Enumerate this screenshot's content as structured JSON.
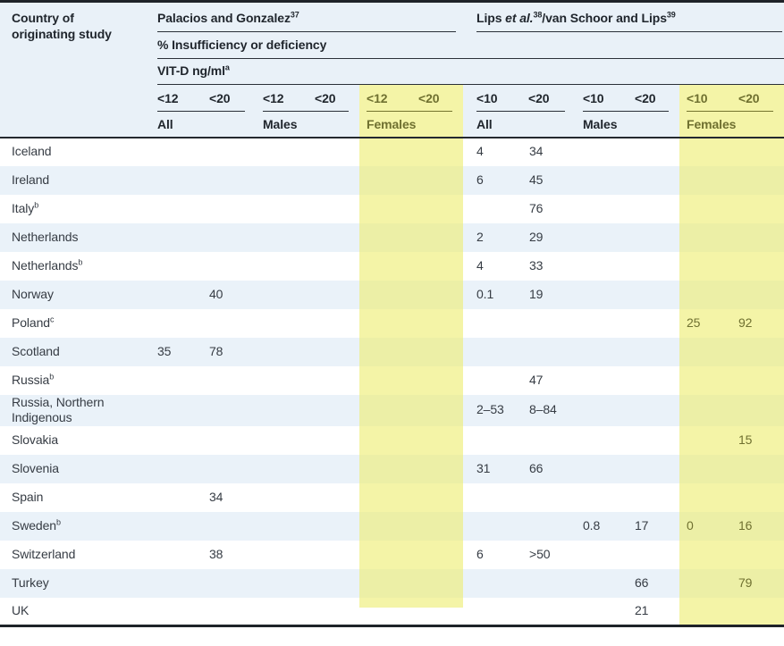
{
  "chart_data": {
    "type": "table",
    "title": "Vitamin D insufficiency or deficiency by country of originating study",
    "header": {
      "country_label": "Country of originating study",
      "study1": {
        "name": "Palacios and Gonzalez",
        "ref": "37"
      },
      "study2": {
        "pre": "Lips ",
        "italic": "et al.",
        "ref1": "38",
        "mid": "/van Schoor and Lips",
        "ref2": "39"
      },
      "measure_label": "% Insufficiency or deficiency",
      "unit_label": "VIT-D ng/ml",
      "unit_sup": "a",
      "subgroups": [
        {
          "t1": "<12",
          "t2": "<20",
          "label": "All",
          "highlight": false
        },
        {
          "t1": "<12",
          "t2": "<20",
          "label": "Males",
          "highlight": false
        },
        {
          "t1": "<12",
          "t2": "<20",
          "label": "Females",
          "highlight": true
        },
        {
          "t1": "<10",
          "t2": "<20",
          "label": "All",
          "highlight": false
        },
        {
          "t1": "<10",
          "t2": "<20",
          "label": "Males",
          "highlight": false
        },
        {
          "t1": "<10",
          "t2": "<20",
          "label": "Females",
          "highlight": true
        }
      ],
      "value_columns": [
        "palacios-all-lt12",
        "palacios-all-lt20",
        "palacios-males-lt12",
        "palacios-males-lt20",
        "palacios-females-lt12",
        "palacios-females-lt20",
        "lips-all-lt10",
        "lips-all-lt20",
        "lips-males-lt10",
        "lips-males-lt20",
        "lips-females-lt10",
        "lips-females-lt20"
      ]
    },
    "rows": [
      {
        "country": "Iceland",
        "sup": "",
        "values": [
          "",
          "",
          "",
          "",
          "",
          "",
          "4",
          "34",
          "",
          "",
          "",
          ""
        ]
      },
      {
        "country": "Ireland",
        "sup": "",
        "values": [
          "",
          "",
          "",
          "",
          "",
          "",
          "6",
          "45",
          "",
          "",
          "",
          ""
        ]
      },
      {
        "country": "Italy",
        "sup": "b",
        "values": [
          "",
          "",
          "",
          "",
          "",
          "",
          "",
          "76",
          "",
          "",
          "",
          ""
        ]
      },
      {
        "country": "Netherlands",
        "sup": "",
        "values": [
          "",
          "",
          "",
          "",
          "",
          "",
          "2",
          "29",
          "",
          "",
          "",
          ""
        ]
      },
      {
        "country": "Netherlands",
        "sup": "b",
        "values": [
          "",
          "",
          "",
          "",
          "",
          "",
          "4",
          "33",
          "",
          "",
          "",
          ""
        ]
      },
      {
        "country": "Norway",
        "sup": "",
        "values": [
          "",
          "40",
          "",
          "",
          "",
          "",
          "0.1",
          "19",
          "",
          "",
          "",
          ""
        ]
      },
      {
        "country": "Poland",
        "sup": "c",
        "values": [
          "",
          "",
          "",
          "",
          "",
          "",
          "",
          "",
          "",
          "",
          "25",
          "92"
        ]
      },
      {
        "country": "Scotland",
        "sup": "",
        "values": [
          "35",
          "78",
          "",
          "",
          "",
          "",
          "",
          "",
          "",
          "",
          "",
          ""
        ]
      },
      {
        "country": "Russia",
        "sup": "b",
        "values": [
          "",
          "",
          "",
          "",
          "",
          "",
          "",
          "47",
          "",
          "",
          "",
          ""
        ]
      },
      {
        "country": "Russia, Northern Indigenous",
        "sup": "",
        "values": [
          "",
          "",
          "",
          "",
          "",
          "",
          "2–53",
          "8–84",
          "",
          "",
          "",
          ""
        ]
      },
      {
        "country": "Slovakia",
        "sup": "",
        "values": [
          "",
          "",
          "",
          "",
          "",
          "",
          "",
          "",
          "",
          "",
          "",
          "15"
        ]
      },
      {
        "country": "Slovenia",
        "sup": "",
        "values": [
          "",
          "",
          "",
          "",
          "",
          "",
          "31",
          "66",
          "",
          "",
          "",
          ""
        ]
      },
      {
        "country": "Spain",
        "sup": "",
        "values": [
          "",
          "34",
          "",
          "",
          "",
          "",
          "",
          "",
          "",
          "",
          "",
          ""
        ]
      },
      {
        "country": "Sweden",
        "sup": "b",
        "values": [
          "",
          "",
          "",
          "",
          "",
          "",
          "",
          "",
          "0.8",
          "17",
          "0",
          "16"
        ]
      },
      {
        "country": "Switzerland",
        "sup": "",
        "values": [
          "",
          "38",
          "",
          "",
          "",
          "",
          "6",
          ">50",
          "",
          "",
          "",
          ""
        ]
      },
      {
        "country": "Turkey",
        "sup": "",
        "values": [
          "",
          "",
          "",
          "",
          "",
          "",
          "",
          "",
          "",
          "66",
          "",
          "79"
        ]
      },
      {
        "country": "UK",
        "sup": "",
        "values": [
          "",
          "",
          "",
          "",
          "",
          "",
          "",
          "",
          "",
          "21",
          "",
          ""
        ]
      }
    ]
  },
  "colors": {
    "highlight_yellow": "#f4f4a7",
    "highlight_yellow_on_blue": "#ecefa6",
    "row_stripe_blue": "#eaf2f9",
    "header_background_blue": "#e9f1f8",
    "olive_highlight_text": "#6f7030",
    "header_text": "#1f252c",
    "body_text": "#363c44",
    "rule_dark": "#24292f"
  }
}
